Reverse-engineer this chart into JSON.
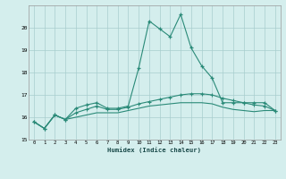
{
  "x": [
    0,
    1,
    2,
    3,
    4,
    5,
    6,
    7,
    8,
    9,
    10,
    11,
    12,
    13,
    14,
    15,
    16,
    17,
    18,
    19,
    20,
    21,
    22,
    23
  ],
  "line1": [
    15.8,
    15.5,
    16.1,
    15.9,
    16.4,
    16.55,
    16.65,
    16.4,
    16.4,
    16.5,
    18.2,
    20.3,
    19.95,
    19.6,
    20.6,
    19.1,
    18.3,
    17.75,
    16.65,
    16.65,
    16.65,
    16.65,
    16.65,
    16.3
  ],
  "line2": [
    15.8,
    15.5,
    16.1,
    15.9,
    16.2,
    16.35,
    16.5,
    16.35,
    16.35,
    16.45,
    16.6,
    16.7,
    16.8,
    16.9,
    17.0,
    17.05,
    17.05,
    17.0,
    16.85,
    16.75,
    16.65,
    16.55,
    16.5,
    16.3
  ],
  "line3": [
    15.8,
    15.5,
    16.1,
    15.9,
    16.0,
    16.1,
    16.2,
    16.2,
    16.2,
    16.3,
    16.4,
    16.5,
    16.55,
    16.6,
    16.65,
    16.65,
    16.65,
    16.6,
    16.45,
    16.35,
    16.3,
    16.25,
    16.3,
    16.3
  ],
  "line_color": "#2a8a78",
  "bg_color": "#d4eeed",
  "grid_color": "#a8cece",
  "xlabel": "Humidex (Indice chaleur)",
  "ylim": [
    15,
    21
  ],
  "xlim": [
    -0.5,
    23.5
  ],
  "yticks": [
    15,
    16,
    17,
    18,
    19,
    20
  ],
  "xticks": [
    0,
    1,
    2,
    3,
    4,
    5,
    6,
    7,
    8,
    9,
    10,
    11,
    12,
    13,
    14,
    15,
    16,
    17,
    18,
    19,
    20,
    21,
    22,
    23
  ]
}
